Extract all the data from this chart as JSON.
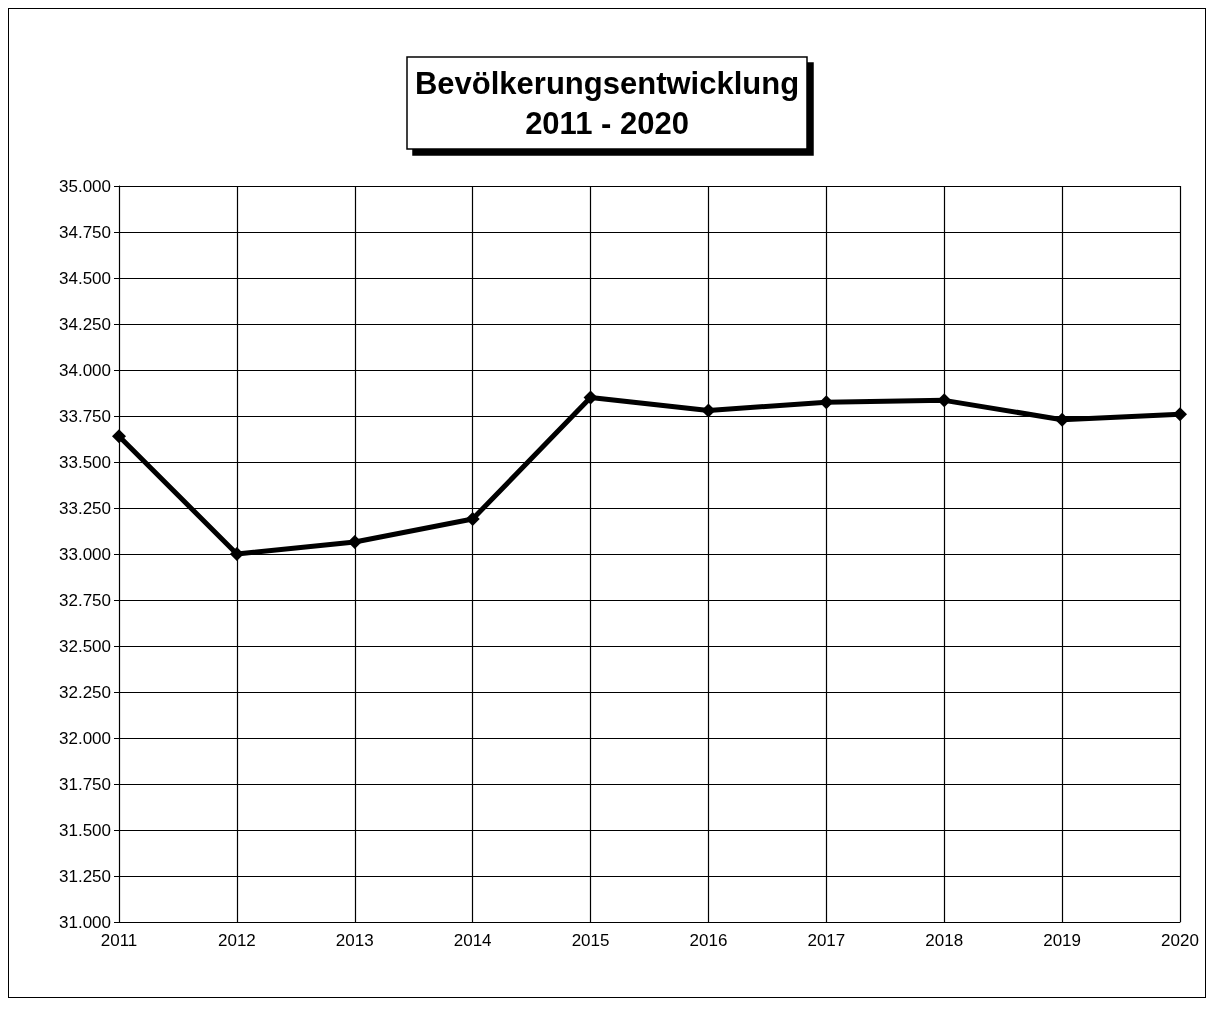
{
  "chart_data": {
    "type": "line",
    "title": "Bevölkerungsentwicklung\n2011 - 2020",
    "categories": [
      "2011",
      "2012",
      "2013",
      "2014",
      "2015",
      "2016",
      "2017",
      "2018",
      "2019",
      "2020"
    ],
    "series": [
      {
        "color": "#000000",
        "values": [
          33640,
          33000,
          33065,
          33190,
          33850,
          33780,
          33825,
          33835,
          33730,
          33760
        ]
      }
    ],
    "marker": "diamond",
    "line_style": "solid",
    "ylim": [
      31000,
      35000
    ],
    "yticks": [
      {
        "value": 31000,
        "label": "31.000"
      },
      {
        "value": 31250,
        "label": "31.250"
      },
      {
        "value": 31500,
        "label": "31.500"
      },
      {
        "value": 31750,
        "label": "31.750"
      },
      {
        "value": 32000,
        "label": "32.000"
      },
      {
        "value": 32250,
        "label": "32.250"
      },
      {
        "value": 32500,
        "label": "32.500"
      },
      {
        "value": 32750,
        "label": "32.750"
      },
      {
        "value": 33000,
        "label": "33.000"
      },
      {
        "value": 33250,
        "label": "33.250"
      },
      {
        "value": 33500,
        "label": "33.500"
      },
      {
        "value": 33750,
        "label": "33.750"
      },
      {
        "value": 34000,
        "label": "34.000"
      },
      {
        "value": 34250,
        "label": "34.250"
      },
      {
        "value": 34500,
        "label": "34.500"
      },
      {
        "value": 34750,
        "label": "34.750"
      },
      {
        "value": 35000,
        "label": "35.000"
      }
    ],
    "grid": true
  }
}
